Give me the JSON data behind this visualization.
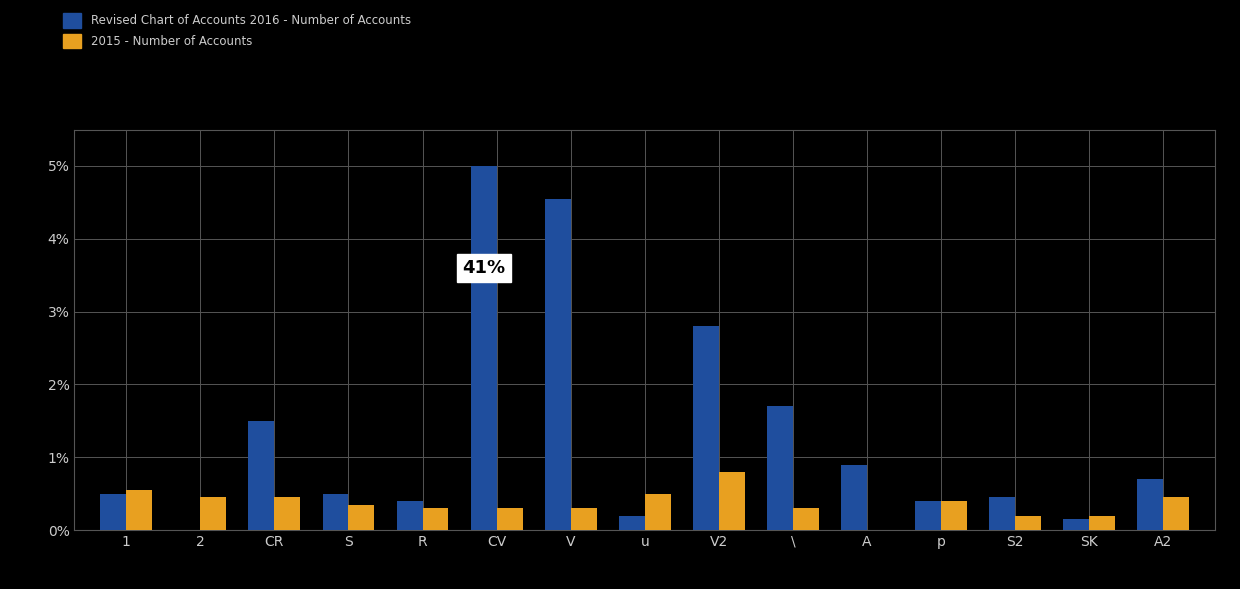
{
  "categories": [
    "1",
    "2",
    "CR",
    "S",
    "R",
    "CV",
    "V",
    "u",
    "V2",
    "\\",
    "A",
    "p",
    "S2",
    "SK",
    "A2"
  ],
  "blue_values": [
    0.5,
    0.0,
    1.5,
    0.5,
    0.4,
    5.0,
    4.55,
    0.2,
    2.8,
    1.7,
    0.9,
    0.4,
    0.45,
    0.15,
    0.7
  ],
  "orange_values": [
    0.55,
    0.45,
    0.45,
    0.35,
    0.3,
    0.3,
    0.3,
    0.5,
    0.8,
    0.3,
    0.0,
    0.4,
    0.2,
    0.2,
    0.45
  ],
  "blue_color": "#1f4e9e",
  "orange_color": "#e8a020",
  "background_color": "#000000",
  "grid_color": "#555555",
  "text_color": "#cccccc",
  "ylim": [
    0,
    5.5
  ],
  "yticks": [
    0,
    1,
    2,
    3,
    4,
    5
  ],
  "ytick_labels": [
    "0%",
    "1%",
    "2%",
    "3%",
    "4%",
    "5%"
  ],
  "legend_label_blue": "Revised Chart of Accounts 2016 - Number of Accounts",
  "legend_label_orange": "2015 - Number of Accounts",
  "annotation_text": "41%",
  "annotation_index": 5,
  "figsize": [
    12.4,
    5.89
  ],
  "dpi": 100
}
